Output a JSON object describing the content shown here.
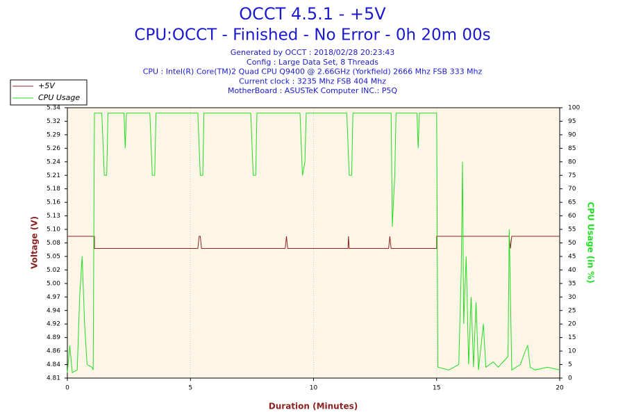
{
  "chart_data": {
    "type": "line",
    "title": "OCCT 4.5.1 - +5V",
    "subtitle": "CPU:OCCT - Finished - No Error - 0h 20m 00s",
    "info_lines": [
      "Generated by OCCT : 2018/02/28 20:23:43",
      "Config : Large Data Set, 8 Threads",
      "CPU : Intel(R) Core(TM)2 Quad CPU Q9400 @ 2.66GHz (Yorkfield) 2666 Mhz FSB 333 Mhz",
      "Current clock : 3235 Mhz FSB 404 Mhz",
      "MotherBoard : ASUSTeK Computer INC.: P5Q"
    ],
    "x_label": "Duration (Minutes)",
    "y_label": "Voltage (V)",
    "y2_label": "CPU Usage (in %)",
    "xlim": [
      0,
      20
    ],
    "xticks": [
      0,
      5,
      10,
      15,
      20
    ],
    "ylim": [
      4.81,
      5.344
    ],
    "yticks": [
      {
        "value": 4.81,
        "label": "4.81"
      },
      {
        "value": 4.8367,
        "label": "4.84"
      },
      {
        "value": 4.8634,
        "label": "4.86"
      },
      {
        "value": 4.8901,
        "label": "4.89"
      },
      {
        "value": 4.9168,
        "label": "4.92"
      },
      {
        "value": 4.9435,
        "label": "4.94"
      },
      {
        "value": 4.9702,
        "label": "4.97"
      },
      {
        "value": 4.9969,
        "label": "5.00"
      },
      {
        "value": 5.0236,
        "label": "5.02"
      },
      {
        "value": 5.0503,
        "label": "5.05"
      },
      {
        "value": 5.077,
        "label": "5.08"
      },
      {
        "value": 5.1037,
        "label": "5.10"
      },
      {
        "value": 5.1304,
        "label": "5.13"
      },
      {
        "value": 5.1571,
        "label": "5.16"
      },
      {
        "value": 5.1838,
        "label": "5.18"
      },
      {
        "value": 5.2105,
        "label": "5.21"
      },
      {
        "value": 5.2372,
        "label": "5.24"
      },
      {
        "value": 5.2639,
        "label": "5.26"
      },
      {
        "value": 5.2906,
        "label": "5.29"
      },
      {
        "value": 5.3173,
        "label": "5.32"
      },
      {
        "value": 5.344,
        "label": "5.34"
      }
    ],
    "y2lim": [
      0,
      100
    ],
    "y2ticks": [
      0,
      5,
      10,
      15,
      20,
      25,
      30,
      35,
      40,
      45,
      50,
      55,
      60,
      65,
      70,
      75,
      80,
      85,
      90,
      95,
      100
    ],
    "grid": true,
    "legend": "upper left",
    "series": [
      {
        "name": "+5V",
        "color": "#8b2323",
        "axis": "y",
        "x": [
          0,
          1.1,
          1.1,
          5.3,
          5.35,
          5.4,
          5.45,
          8.85,
          8.9,
          8.95,
          11.4,
          11.42,
          11.45,
          13.05,
          13.1,
          13.15,
          15.0,
          15.0,
          17.95,
          18.0,
          18.05,
          20
        ],
        "values": [
          5.09,
          5.09,
          5.066,
          5.066,
          5.09,
          5.09,
          5.066,
          5.066,
          5.09,
          5.066,
          5.066,
          5.09,
          5.066,
          5.066,
          5.09,
          5.066,
          5.066,
          5.09,
          5.09,
          5.066,
          5.09,
          5.09
        ]
      },
      {
        "name": "CPU Usage",
        "color": "#22dd22",
        "axis": "y2",
        "x": [
          0,
          0.1,
          0.2,
          0.4,
          0.5,
          0.6,
          0.7,
          0.8,
          1.0,
          1.05,
          1.1,
          1.4,
          1.5,
          1.6,
          1.65,
          2.3,
          2.35,
          2.4,
          3.35,
          3.45,
          3.55,
          3.6,
          5.3,
          5.4,
          5.5,
          5.55,
          7.45,
          7.55,
          7.65,
          7.7,
          9.45,
          9.55,
          9.65,
          9.7,
          11.35,
          11.45,
          11.55,
          11.6,
          13.15,
          13.2,
          13.3,
          13.35,
          14.2,
          14.25,
          14.3,
          15.0,
          15.05,
          15.5,
          15.9,
          16.0,
          16.05,
          16.1,
          16.2,
          16.3,
          16.4,
          16.5,
          16.6,
          16.7,
          16.9,
          17.0,
          17.3,
          17.5,
          17.9,
          17.95,
          18.0,
          18.05,
          18.4,
          18.6,
          18.7,
          18.8,
          19.0,
          19.5,
          20.0
        ],
        "values": [
          2,
          12,
          2,
          3,
          30,
          45,
          20,
          5,
          4,
          3,
          98,
          98,
          75,
          75,
          98,
          98,
          85,
          98,
          98,
          75,
          75,
          98,
          98,
          75,
          75,
          98,
          98,
          75,
          75,
          98,
          98,
          75,
          80,
          98,
          98,
          75,
          75,
          98,
          98,
          56,
          75,
          98,
          98,
          85,
          98,
          98,
          4,
          3,
          5,
          40,
          80,
          20,
          45,
          5,
          30,
          4,
          28,
          3,
          20,
          4,
          6,
          4,
          8,
          55,
          30,
          3,
          5,
          10,
          12,
          4,
          3,
          4,
          3
        ]
      }
    ]
  }
}
